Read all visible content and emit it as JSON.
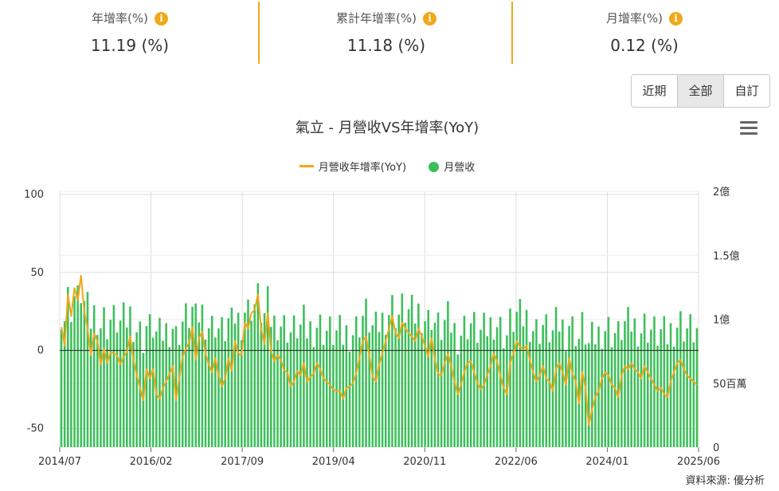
{
  "stats": [
    {
      "label": "年增率(%)",
      "value": "11.19 (%)"
    },
    {
      "label": "累計年增率(%)",
      "value": "11.18 (%)"
    },
    {
      "label": "月增率(%)",
      "value": "0.12 (%)"
    }
  ],
  "info_icon": "info-icon",
  "range_buttons": [
    "近期",
    "全部",
    "自訂"
  ],
  "active_range": "全部",
  "chart_title": "氣立 - 月營收VS年增率(YoY)",
  "menu_icon": "hamburger-menu-icon",
  "legend": {
    "yoy": "月營收年增率(YoY)",
    "revenue": "月營收"
  },
  "source": "資料來源: 優分析",
  "colors": {
    "yoy": "#f0a818",
    "revenue": "#3cbf5a",
    "accent": "#f0a818"
  },
  "chart_data": {
    "type": "bar+line",
    "title": "氣立 - 月營收VS年增率(YoY)",
    "x_tick_labels": [
      "2014/07",
      "2016/02",
      "2017/09",
      "2019/04",
      "2020/11",
      "2022/06",
      "2024/01",
      "2025/06"
    ],
    "x_range": [
      "2014/07",
      "2025/06"
    ],
    "y_left": {
      "ticks": [
        "100",
        "50",
        "0",
        "-50"
      ],
      "range": [
        -62,
        102
      ]
    },
    "y_right": {
      "ticks": [
        "2億",
        "1.5億",
        "1億",
        "50百萬",
        "0"
      ],
      "range": [
        0,
        200000000
      ]
    },
    "grid": true,
    "legend_position": "top-center",
    "series": [
      {
        "name": "月營收年增率(YoY)",
        "axis": "left",
        "type": "line",
        "values": [
          15,
          3,
          36,
          22,
          40,
          32,
          48,
          25,
          14,
          -3,
          11,
          6,
          -9,
          1,
          -8,
          -1,
          -2,
          -3,
          -9,
          -4,
          -1,
          9,
          -6,
          -16,
          -24,
          -32,
          -12,
          -18,
          -12,
          -28,
          -31,
          -24,
          -20,
          -15,
          -10,
          -32,
          -18,
          -4,
          1,
          5,
          15,
          -6,
          8,
          12,
          -2,
          -9,
          -14,
          -5,
          -16,
          -23,
          -18,
          -5,
          -13,
          6,
          -2,
          -3,
          18,
          14,
          24,
          26,
          36,
          14,
          4,
          24,
          0,
          -7,
          -3,
          -6,
          -13,
          -14,
          -23,
          -20,
          -13,
          -16,
          -8,
          -20,
          -17,
          -15,
          -8,
          -12,
          -18,
          -20,
          -22,
          -25,
          -26,
          -26,
          -31,
          -24,
          -23,
          -21,
          -15,
          -5,
          6,
          9,
          -3,
          -17,
          -20,
          -9,
          -2,
          6,
          14,
          22,
          11,
          8,
          18,
          14,
          11,
          9,
          6,
          14,
          9,
          3,
          -4,
          8,
          -6,
          -15,
          -16,
          -8,
          -2,
          -10,
          -20,
          -28,
          -22,
          -14,
          -8,
          -7,
          -14,
          -21,
          -25,
          -22,
          -16,
          -10,
          -2,
          -7,
          -16,
          -24,
          -28,
          -8,
          -2,
          6,
          2,
          1,
          3,
          -6,
          -14,
          -20,
          -16,
          -10,
          -18,
          -20,
          -26,
          -12,
          -8,
          -14,
          -22,
          -5,
          -15,
          -20,
          -34,
          -14,
          -24,
          -48,
          -38,
          -30,
          -26,
          -18,
          -14,
          -16,
          -22,
          -24,
          -30,
          -16,
          -10,
          -12,
          -8,
          -12,
          -14,
          -18,
          -10,
          -14,
          -18,
          -22,
          -26,
          -24,
          -28,
          -30,
          -20,
          -14,
          -8,
          -6,
          -12,
          -16,
          -18,
          -20,
          -22
        ]
      }
    ]
  }
}
